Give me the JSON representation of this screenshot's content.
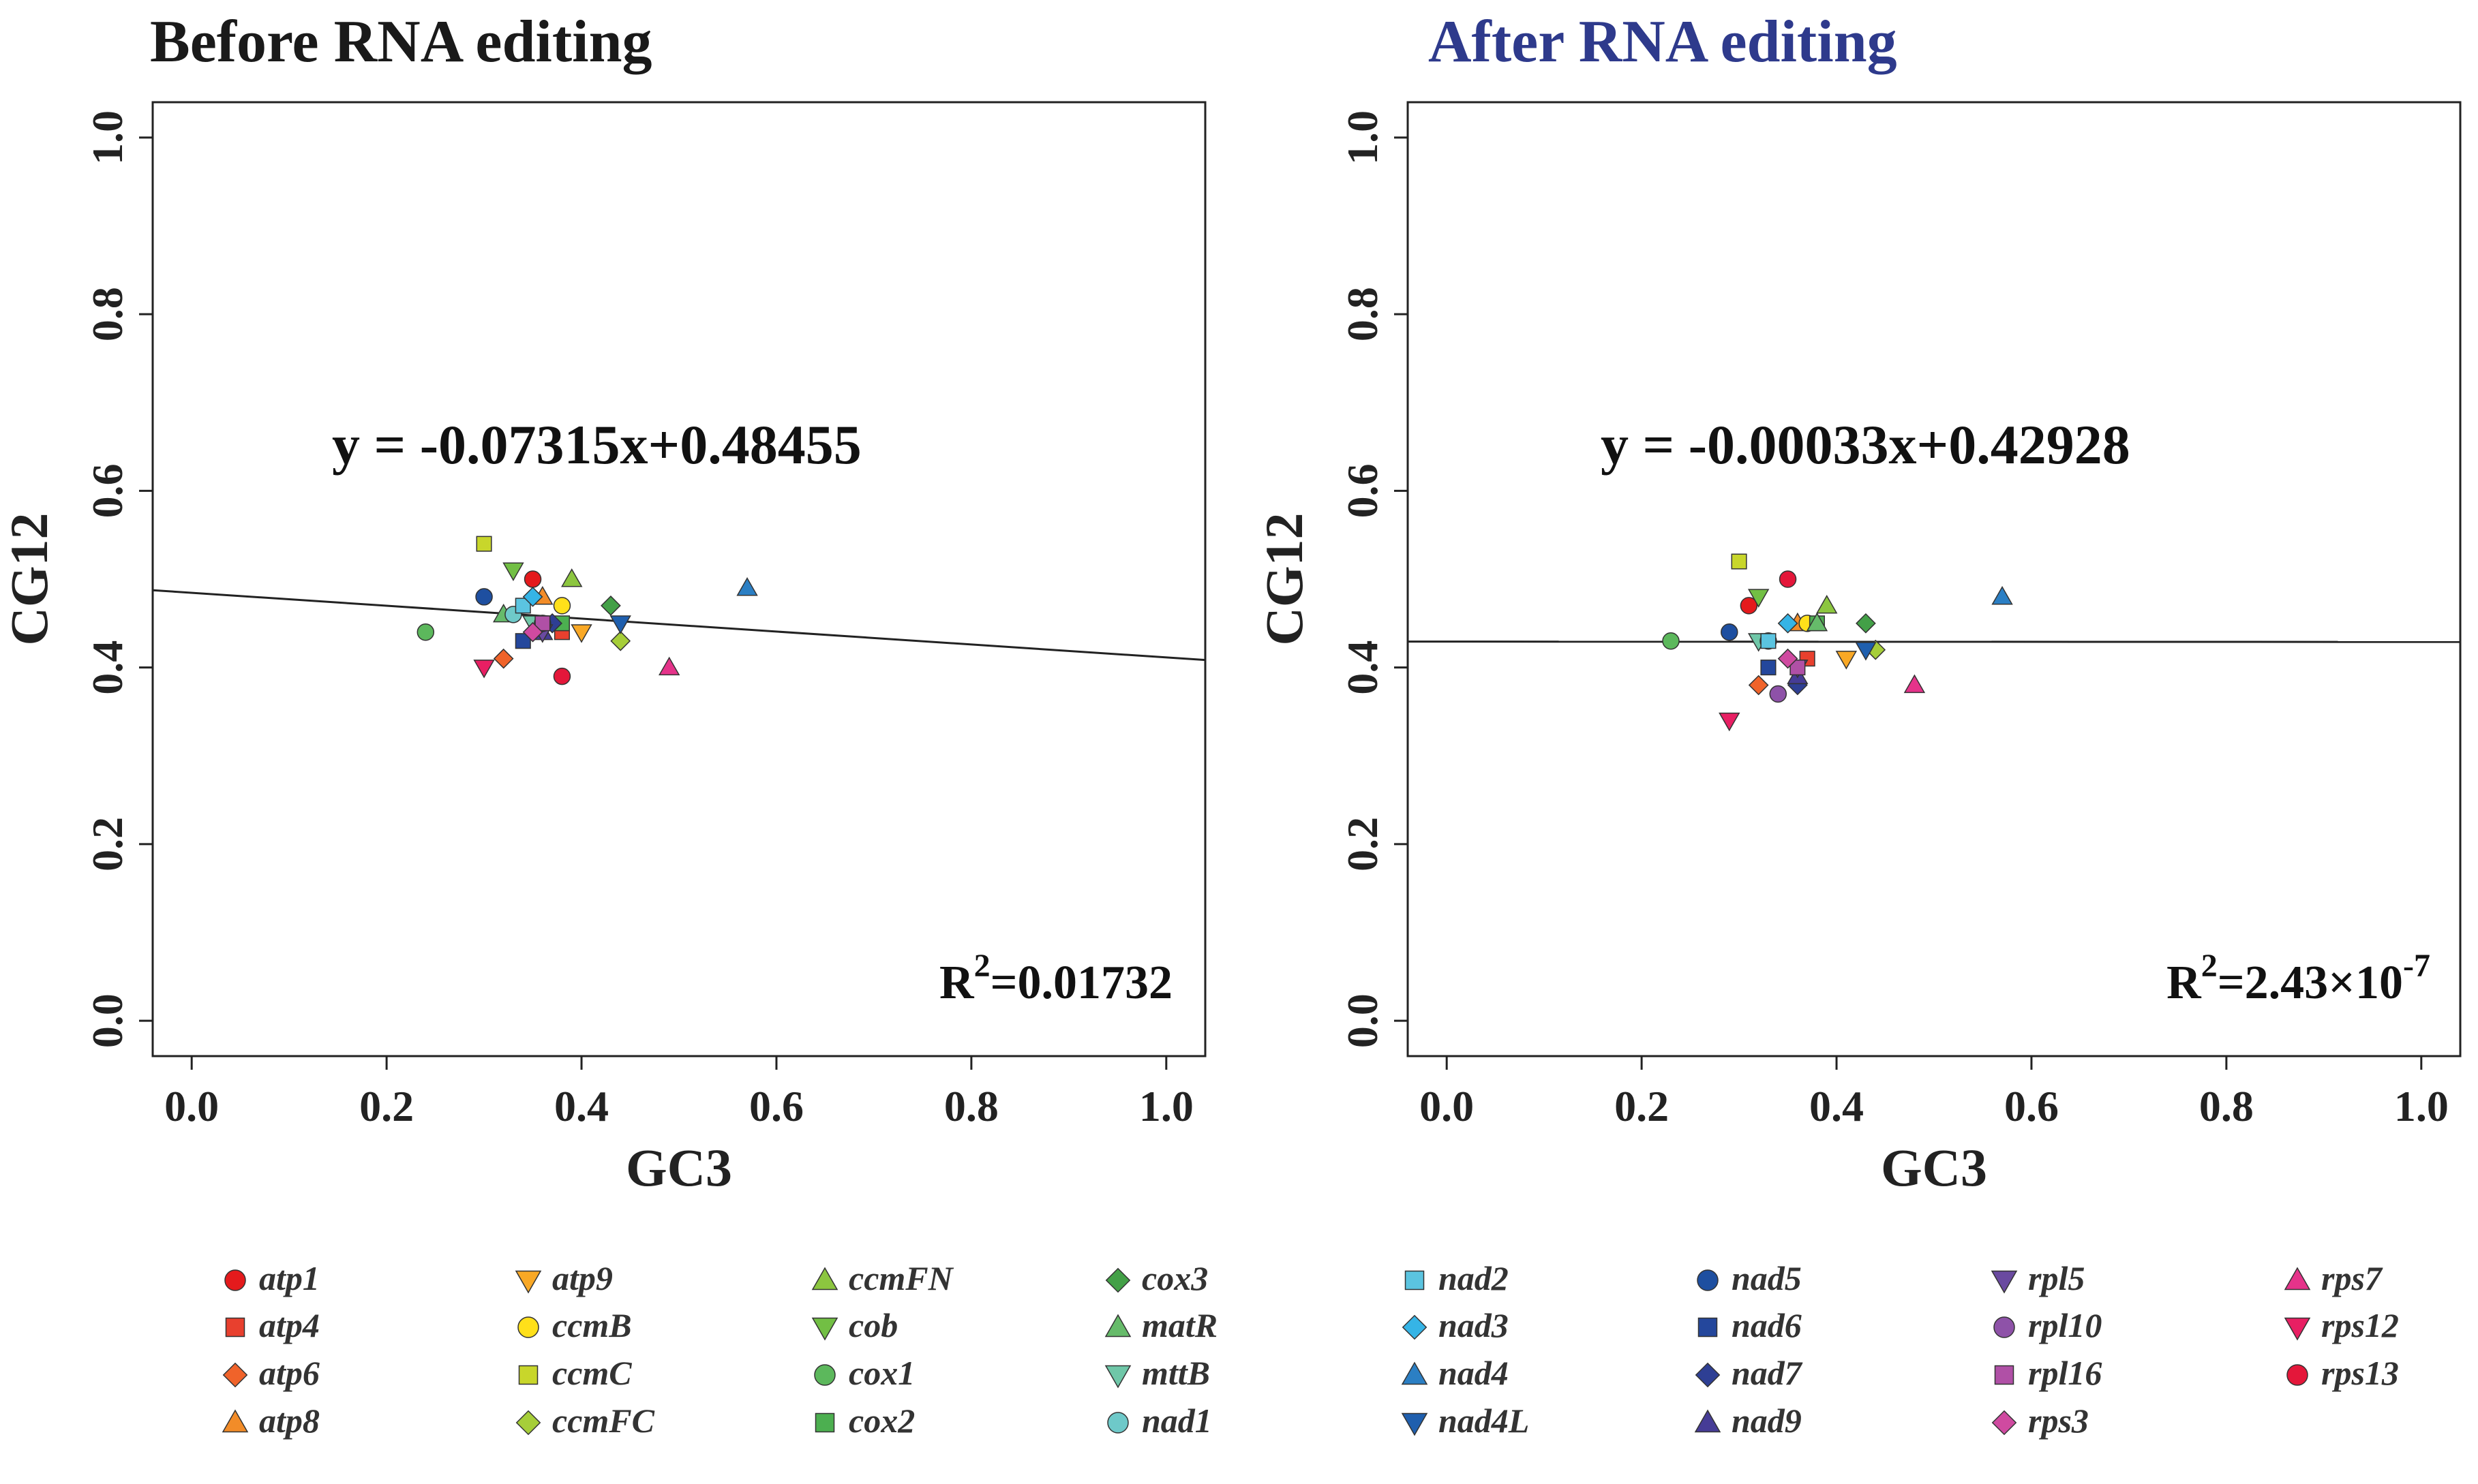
{
  "chart_data": [
    {
      "type": "scatter",
      "title": "Before RNA editing",
      "title_color": "#1a1a1a",
      "xlabel": "GC3",
      "ylabel": "CG12",
      "xlim": [
        -0.04,
        1.04
      ],
      "ylim": [
        -0.04,
        1.04
      ],
      "xticks": [
        "0.0",
        "0.2",
        "0.4",
        "0.6",
        "0.8",
        "1.0"
      ],
      "yticks": [
        "0.0",
        "0.2",
        "0.4",
        "0.6",
        "0.8",
        "1.0"
      ],
      "regression": {
        "slope": -0.07315,
        "intercept": 0.48455,
        "label": "y = -0.07315x+0.48455"
      },
      "r2": {
        "prefix": "R",
        "sup": "2",
        "value": "=0.01732"
      },
      "points": [
        {
          "gene": "atp1",
          "x": 0.35,
          "y": 0.5
        },
        {
          "gene": "atp4",
          "x": 0.38,
          "y": 0.44
        },
        {
          "gene": "atp6",
          "x": 0.32,
          "y": 0.41
        },
        {
          "gene": "atp8",
          "x": 0.36,
          "y": 0.48
        },
        {
          "gene": "atp9",
          "x": 0.4,
          "y": 0.44
        },
        {
          "gene": "ccmB",
          "x": 0.38,
          "y": 0.47
        },
        {
          "gene": "ccmC",
          "x": 0.3,
          "y": 0.54
        },
        {
          "gene": "ccmFC",
          "x": 0.44,
          "y": 0.43
        },
        {
          "gene": "ccmFN",
          "x": 0.39,
          "y": 0.5
        },
        {
          "gene": "cob",
          "x": 0.33,
          "y": 0.51
        },
        {
          "gene": "cox1",
          "x": 0.24,
          "y": 0.44
        },
        {
          "gene": "cox2",
          "x": 0.38,
          "y": 0.45
        },
        {
          "gene": "cox3",
          "x": 0.43,
          "y": 0.47
        },
        {
          "gene": "matR",
          "x": 0.32,
          "y": 0.46
        },
        {
          "gene": "mttB",
          "x": 0.35,
          "y": 0.45
        },
        {
          "gene": "nad1",
          "x": 0.33,
          "y": 0.46
        },
        {
          "gene": "nad2",
          "x": 0.34,
          "y": 0.47
        },
        {
          "gene": "nad3",
          "x": 0.35,
          "y": 0.48
        },
        {
          "gene": "nad4",
          "x": 0.57,
          "y": 0.49
        },
        {
          "gene": "nad4L",
          "x": 0.44,
          "y": 0.45
        },
        {
          "gene": "nad5",
          "x": 0.3,
          "y": 0.48
        },
        {
          "gene": "nad6",
          "x": 0.34,
          "y": 0.43
        },
        {
          "gene": "nad7",
          "x": 0.37,
          "y": 0.45
        },
        {
          "gene": "nad9",
          "x": 0.36,
          "y": 0.44
        },
        {
          "gene": "rpl5",
          "x": 0.36,
          "y": 0.44
        },
        {
          "gene": "rpl10",
          "x": 0.36,
          "y": 0.45
        },
        {
          "gene": "rpl16",
          "x": 0.36,
          "y": 0.45
        },
        {
          "gene": "rps3",
          "x": 0.35,
          "y": 0.44
        },
        {
          "gene": "rps7",
          "x": 0.49,
          "y": 0.4
        },
        {
          "gene": "rps12",
          "x": 0.3,
          "y": 0.4
        },
        {
          "gene": "rps13",
          "x": 0.38,
          "y": 0.39
        }
      ]
    },
    {
      "type": "scatter",
      "title": "After RNA editing",
      "title_color": "#2e3a8c",
      "xlabel": "GC3",
      "ylabel": "CG12",
      "xlim": [
        -0.04,
        1.04
      ],
      "ylim": [
        -0.04,
        1.04
      ],
      "xticks": [
        "0.0",
        "0.2",
        "0.4",
        "0.6",
        "0.8",
        "1.0"
      ],
      "yticks": [
        "0.0",
        "0.2",
        "0.4",
        "0.6",
        "0.8",
        "1.0"
      ],
      "regression": {
        "slope": -0.00033,
        "intercept": 0.42928,
        "label": "y = -0.00033x+0.42928"
      },
      "r2": {
        "prefix": "R",
        "sup": "2",
        "value": "=2.43×10",
        "exp": "-7"
      },
      "points": [
        {
          "gene": "atp1",
          "x": 0.31,
          "y": 0.47
        },
        {
          "gene": "atp4",
          "x": 0.37,
          "y": 0.41
        },
        {
          "gene": "atp6",
          "x": 0.32,
          "y": 0.38
        },
        {
          "gene": "atp8",
          "x": 0.36,
          "y": 0.45
        },
        {
          "gene": "atp9",
          "x": 0.41,
          "y": 0.41
        },
        {
          "gene": "ccmB",
          "x": 0.37,
          "y": 0.45
        },
        {
          "gene": "ccmC",
          "x": 0.3,
          "y": 0.52
        },
        {
          "gene": "ccmFC",
          "x": 0.44,
          "y": 0.42
        },
        {
          "gene": "ccmFN",
          "x": 0.39,
          "y": 0.47
        },
        {
          "gene": "cob",
          "x": 0.32,
          "y": 0.48
        },
        {
          "gene": "cox1",
          "x": 0.23,
          "y": 0.43
        },
        {
          "gene": "cox2",
          "x": 0.38,
          "y": 0.45
        },
        {
          "gene": "cox3",
          "x": 0.43,
          "y": 0.45
        },
        {
          "gene": "matR",
          "x": 0.38,
          "y": 0.45
        },
        {
          "gene": "mttB",
          "x": 0.32,
          "y": 0.43
        },
        {
          "gene": "nad1",
          "x": 0.33,
          "y": 0.43
        },
        {
          "gene": "nad2",
          "x": 0.33,
          "y": 0.43
        },
        {
          "gene": "nad3",
          "x": 0.35,
          "y": 0.45
        },
        {
          "gene": "nad4",
          "x": 0.57,
          "y": 0.48
        },
        {
          "gene": "nad4L",
          "x": 0.43,
          "y": 0.42
        },
        {
          "gene": "nad5",
          "x": 0.29,
          "y": 0.44
        },
        {
          "gene": "nad6",
          "x": 0.33,
          "y": 0.4
        },
        {
          "gene": "nad7",
          "x": 0.36,
          "y": 0.38
        },
        {
          "gene": "nad9",
          "x": 0.36,
          "y": 0.39
        },
        {
          "gene": "rpl5",
          "x": 0.36,
          "y": 0.4
        },
        {
          "gene": "rpl10",
          "x": 0.34,
          "y": 0.37
        },
        {
          "gene": "rpl16",
          "x": 0.36,
          "y": 0.4
        },
        {
          "gene": "rps3",
          "x": 0.35,
          "y": 0.41
        },
        {
          "gene": "rps7",
          "x": 0.48,
          "y": 0.38
        },
        {
          "gene": "rps12",
          "x": 0.29,
          "y": 0.34
        },
        {
          "gene": "rps13",
          "x": 0.35,
          "y": 0.5
        }
      ]
    }
  ],
  "legend": [
    {
      "gene": "atp1",
      "shape": "circle",
      "color": "#e41a1c"
    },
    {
      "gene": "atp4",
      "shape": "square",
      "color": "#e8402e"
    },
    {
      "gene": "atp6",
      "shape": "diamond",
      "color": "#f0632a"
    },
    {
      "gene": "atp8",
      "shape": "triangle-up",
      "color": "#f28c28"
    },
    {
      "gene": "atp9",
      "shape": "triangle-down",
      "color": "#f9a825"
    },
    {
      "gene": "ccmB",
      "shape": "circle",
      "color": "#ffe01a"
    },
    {
      "gene": "ccmC",
      "shape": "square",
      "color": "#c8d62b"
    },
    {
      "gene": "ccmFC",
      "shape": "diamond",
      "color": "#a6ce39"
    },
    {
      "gene": "ccmFN",
      "shape": "triangle-up",
      "color": "#8cc63f"
    },
    {
      "gene": "cob",
      "shape": "triangle-down",
      "color": "#72bf44"
    },
    {
      "gene": "cox1",
      "shape": "circle",
      "color": "#5cb85c"
    },
    {
      "gene": "cox2",
      "shape": "square",
      "color": "#4caf50"
    },
    {
      "gene": "cox3",
      "shape": "diamond",
      "color": "#43a047"
    },
    {
      "gene": "matR",
      "shape": "triangle-up",
      "color": "#66bb6a"
    },
    {
      "gene": "mttB",
      "shape": "triangle-down",
      "color": "#6fc7a8"
    },
    {
      "gene": "nad1",
      "shape": "circle",
      "color": "#6ec9c9"
    },
    {
      "gene": "nad2",
      "shape": "square",
      "color": "#5bc4e0"
    },
    {
      "gene": "nad3",
      "shape": "diamond",
      "color": "#35b4e6"
    },
    {
      "gene": "nad4",
      "shape": "triangle-up",
      "color": "#2b7fc4"
    },
    {
      "gene": "nad4L",
      "shape": "triangle-down",
      "color": "#1f5fae"
    },
    {
      "gene": "nad5",
      "shape": "circle",
      "color": "#1e4fa0"
    },
    {
      "gene": "nad6",
      "shape": "square",
      "color": "#24479c"
    },
    {
      "gene": "nad7",
      "shape": "diamond",
      "color": "#2e3f94"
    },
    {
      "gene": "nad9",
      "shape": "triangle-up",
      "color": "#463c96"
    },
    {
      "gene": "rpl5",
      "shape": "triangle-down",
      "color": "#6a4aa0"
    },
    {
      "gene": "rpl10",
      "shape": "circle",
      "color": "#8e52a8"
    },
    {
      "gene": "rpl16",
      "shape": "square",
      "color": "#b050a6"
    },
    {
      "gene": "rps3",
      "shape": "diamond",
      "color": "#cf4aa0"
    },
    {
      "gene": "rps7",
      "shape": "triangle-up",
      "color": "#e5338a"
    },
    {
      "gene": "rps12",
      "shape": "triangle-down",
      "color": "#e81f63"
    },
    {
      "gene": "rps13",
      "shape": "circle",
      "color": "#e4173a"
    }
  ]
}
